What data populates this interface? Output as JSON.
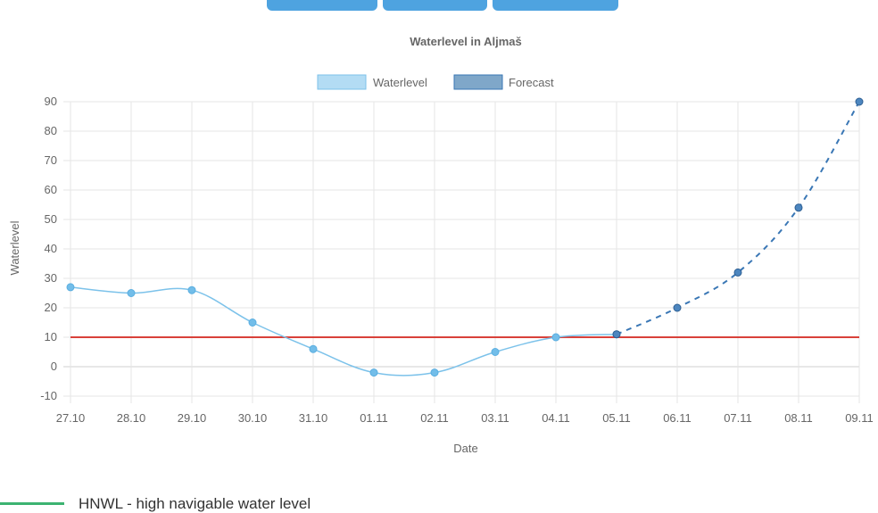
{
  "tabs": [
    {
      "label": ""
    },
    {
      "label": ""
    },
    {
      "label": ""
    }
  ],
  "legend_items": [
    {
      "label": "HNWL - high navigable water level",
      "color": "#3cb371"
    }
  ],
  "chart_data": {
    "type": "line",
    "title": "Waterlevel in Aljmaš",
    "xlabel": "Date",
    "ylabel": "Waterlevel",
    "ylim": [
      -10,
      90
    ],
    "yticks": [
      -10,
      0,
      10,
      20,
      30,
      40,
      50,
      60,
      70,
      80,
      90
    ],
    "categories": [
      "27.10",
      "28.10",
      "29.10",
      "30.10",
      "31.10",
      "01.11",
      "02.11",
      "03.11",
      "04.11",
      "05.11",
      "06.11",
      "07.11",
      "08.11",
      "09.11"
    ],
    "series": [
      {
        "name": "Waterlevel",
        "color": "#7cc2ea",
        "fill": "#b3dcf4",
        "values": [
          27,
          25,
          26,
          15,
          6,
          -2,
          -2,
          5,
          10,
          11,
          null,
          null,
          null,
          null
        ]
      },
      {
        "name": "Forecast",
        "color": "#3a77b5",
        "fill": "#7fa7c9",
        "dashed": true,
        "values": [
          null,
          null,
          null,
          null,
          null,
          null,
          null,
          null,
          null,
          11,
          20,
          32,
          54,
          90
        ]
      }
    ],
    "reference_line": {
      "value": 10,
      "color": "#d9413a"
    },
    "grid": true,
    "legend_position": "top"
  }
}
